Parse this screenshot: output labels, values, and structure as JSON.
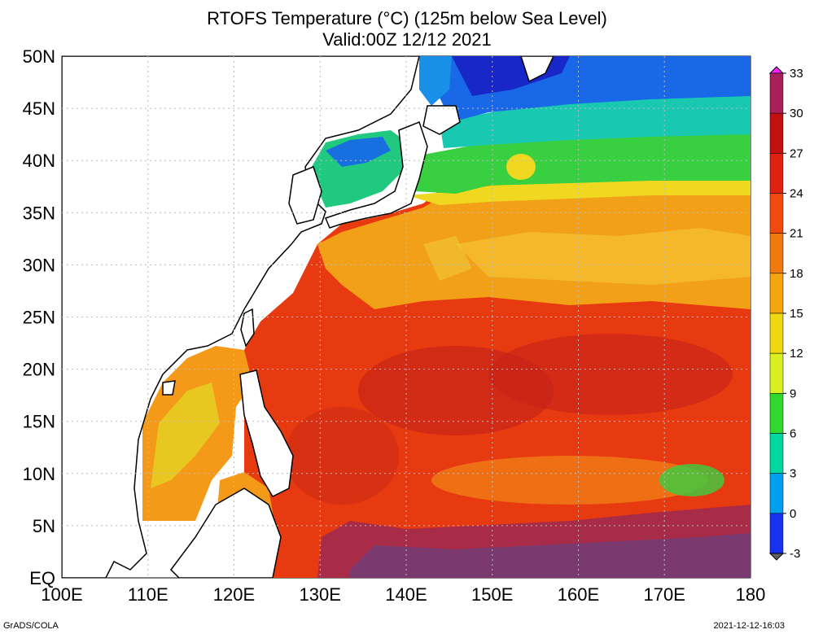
{
  "title_line1": "RTOFS Temperature (°C) (125m below Sea Level)",
  "title_line2": "Valid:00Z 12/12 2021",
  "lat_labels": [
    "50N",
    "45N",
    "40N",
    "35N",
    "30N",
    "25N",
    "20N",
    "15N",
    "10N",
    "5N",
    "EQ"
  ],
  "lon_labels": [
    "100E",
    "110E",
    "120E",
    "130E",
    "140E",
    "150E",
    "160E",
    "170E",
    "180"
  ],
  "colorbar": {
    "labels": [
      "33",
      "30",
      "27",
      "24",
      "21",
      "18",
      "15",
      "12",
      "9",
      "6",
      "3",
      "0",
      "-3"
    ],
    "colors": [
      "#a8205a",
      "#c01010",
      "#e02010",
      "#f04a10",
      "#f07a10",
      "#f4a510",
      "#f0d810",
      "#d8f020",
      "#30d830",
      "#00d8a0",
      "#00a0f0",
      "#1830f0",
      "#5050a0"
    ],
    "top_color": "#ff20ff",
    "bottom_color": "#606060"
  },
  "footer_left": "GrADS/COLA",
  "footer_right": "2021-12-12-16:03"
}
